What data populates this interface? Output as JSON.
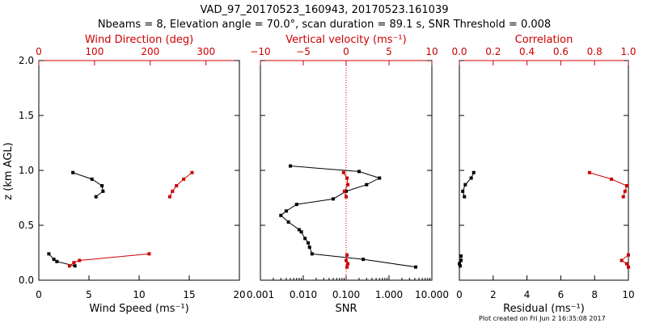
{
  "title_line1": "VAD_97_20170523_160943, 20170523.161039",
  "title_line2": "Nbeams = 8, Elevation angle = 70.0°, scan duration = 89.1 s, SNR Threshold = 0.008",
  "footer": "Plot created on Fri Jun  2 16:35:08 2017",
  "colors": {
    "primary": "#000000",
    "secondary": "#cc0000"
  },
  "chart_data": [
    {
      "type": "line",
      "ylabel": "z (km AGL)",
      "ylim": [
        0,
        2.0
      ],
      "yticks": [
        "0.0",
        "0.5",
        "1.0",
        "1.5",
        "2.0"
      ],
      "bottom_axis": {
        "label": "Wind Speed (ms⁻¹)",
        "range": [
          0,
          20
        ],
        "ticks": [
          "0",
          "5",
          "10",
          "15",
          "20"
        ]
      },
      "top_axis": {
        "label": "Wind Direction (deg)",
        "range": [
          0,
          360
        ],
        "ticks": [
          "0",
          "100",
          "200",
          "300"
        ]
      },
      "series": [
        {
          "axis": "bottom",
          "color": "#000000",
          "segments": [
            [
              [
                3.4,
                0.98
              ],
              [
                5.3,
                0.92
              ],
              [
                6.3,
                0.86
              ],
              [
                6.4,
                0.81
              ],
              [
                5.7,
                0.76
              ]
            ],
            [
              [
                1.0,
                0.24
              ],
              [
                1.5,
                0.19
              ],
              [
                1.8,
                0.17
              ],
              [
                3.6,
                0.13
              ]
            ]
          ]
        },
        {
          "axis": "top",
          "color": "#cc0000",
          "segments": [
            [
              [
                275,
                0.98
              ],
              [
                260,
                0.92
              ],
              [
                247,
                0.86
              ],
              [
                240,
                0.81
              ],
              [
                235,
                0.76
              ]
            ],
            [
              [
                198,
                0.24
              ],
              [
                73,
                0.18
              ],
              [
                63,
                0.16
              ],
              [
                55,
                0.13
              ]
            ]
          ]
        }
      ]
    },
    {
      "type": "line",
      "bottom_axis": {
        "label": "SNR",
        "scale": "log",
        "range": [
          0.001,
          10
        ],
        "ticks": [
          "0.001",
          "0.010",
          "0.100",
          "1.000",
          "10.000"
        ]
      },
      "top_axis": {
        "label": "Vertical velocity (ms⁻¹)",
        "range": [
          -10,
          10
        ],
        "ticks": [
          "−10",
          "−5",
          "0",
          "5",
          "10"
        ]
      },
      "zero_line": 0,
      "series": [
        {
          "axis": "bottom",
          "color": "#000000",
          "segments": [
            [
              [
                0.005,
                1.04
              ],
              [
                0.2,
                0.99
              ],
              [
                0.6,
                0.93
              ],
              [
                0.3,
                0.87
              ],
              [
                0.1,
                0.81
              ],
              [
                0.05,
                0.74
              ],
              [
                0.007,
                0.69
              ],
              [
                0.004,
                0.63
              ],
              [
                0.003,
                0.59
              ],
              [
                0.0045,
                0.53
              ],
              [
                0.008,
                0.46
              ],
              [
                0.009,
                0.44
              ],
              [
                0.011,
                0.38
              ],
              [
                0.013,
                0.34
              ],
              [
                0.014,
                0.3
              ],
              [
                0.016,
                0.24
              ],
              [
                0.25,
                0.19
              ],
              [
                4.2,
                0.12
              ]
            ]
          ]
        },
        {
          "axis": "top",
          "color": "#cc0000",
          "segments": [
            [
              [
                -0.3,
                0.98
              ],
              [
                0.1,
                0.93
              ],
              [
                0.2,
                0.87
              ],
              [
                -0.2,
                0.81
              ],
              [
                0.0,
                0.76
              ]
            ],
            [
              [
                0.1,
                0.23
              ],
              [
                0.0,
                0.18
              ],
              [
                0.2,
                0.15
              ],
              [
                0.1,
                0.12
              ]
            ]
          ]
        }
      ]
    },
    {
      "type": "line",
      "bottom_axis": {
        "label": "Residual (ms⁻¹)",
        "range": [
          0,
          10
        ],
        "ticks": [
          "0",
          "2",
          "4",
          "6",
          "8",
          "10"
        ]
      },
      "top_axis": {
        "label": "Correlation",
        "range": [
          0,
          1
        ],
        "ticks": [
          "0.0",
          "0.2",
          "0.4",
          "0.6",
          "0.8",
          "1.0"
        ]
      },
      "series": [
        {
          "axis": "bottom",
          "color": "#000000",
          "segments": [
            [
              [
                0.85,
                0.98
              ],
              [
                0.7,
                0.93
              ],
              [
                0.35,
                0.87
              ],
              [
                0.2,
                0.81
              ],
              [
                0.3,
                0.76
              ]
            ],
            [
              [
                0.1,
                0.22
              ],
              [
                0.1,
                0.18
              ],
              [
                0.0,
                0.15
              ],
              [
                0.05,
                0.13
              ]
            ]
          ]
        },
        {
          "axis": "top",
          "color": "#cc0000",
          "segments": [
            [
              [
                0.77,
                0.98
              ],
              [
                0.9,
                0.92
              ],
              [
                0.99,
                0.86
              ],
              [
                0.98,
                0.81
              ],
              [
                0.97,
                0.76
              ]
            ],
            [
              [
                1.0,
                0.23
              ],
              [
                0.96,
                0.18
              ],
              [
                0.99,
                0.15
              ],
              [
                1.0,
                0.12
              ]
            ]
          ]
        }
      ]
    }
  ]
}
